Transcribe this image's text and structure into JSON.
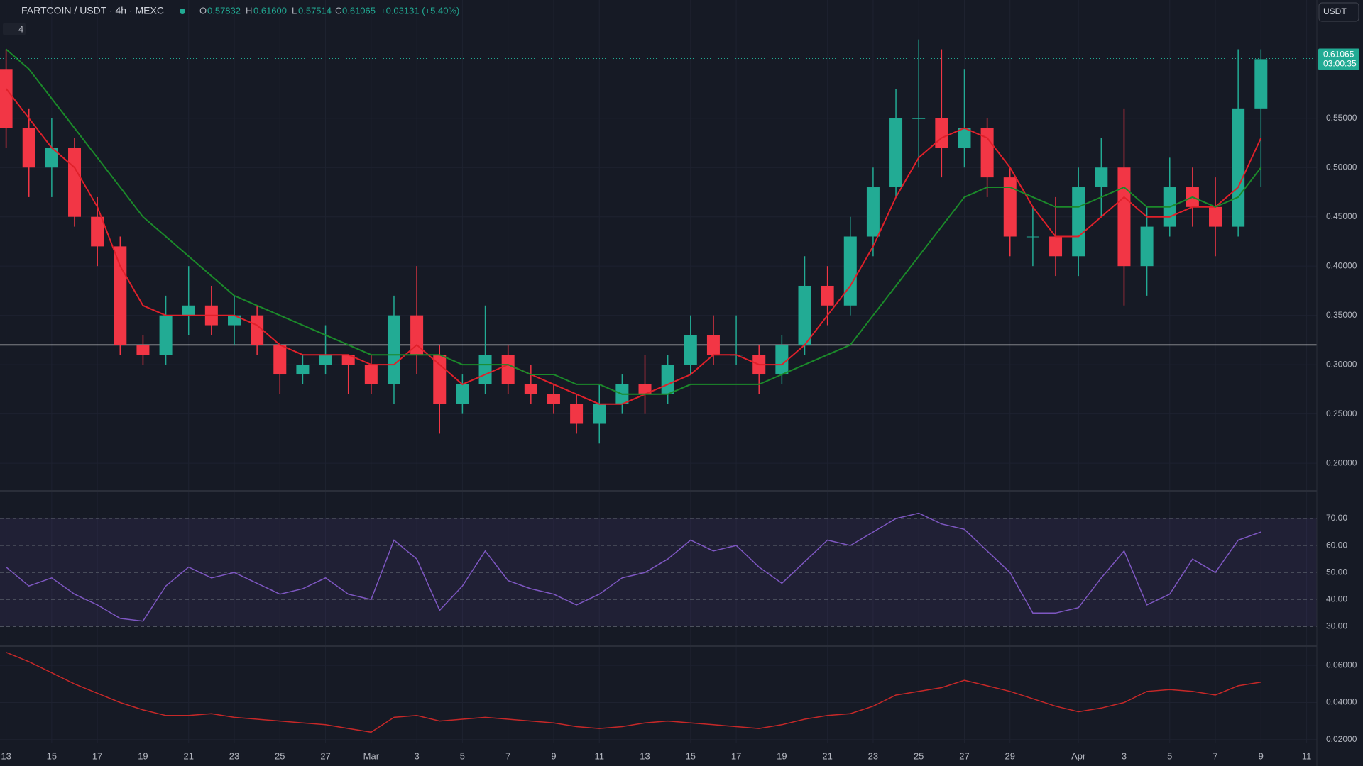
{
  "header": {
    "symbol": "FARTCOIN / USDT · 4h · MEXC",
    "o_label": "O",
    "o": "0.57832",
    "h_label": "H",
    "h": "0.61600",
    "l_label": "L",
    "l": "0.57514",
    "c_label": "C",
    "c": "0.61065",
    "change": "+0.03131 (+5.40%)",
    "currency": "USDT",
    "indicators": "4",
    "countdown": "03:00:35"
  },
  "chart_data": [
    {
      "type": "candlestick",
      "categories": [
        "13",
        null,
        "15",
        null,
        "17",
        null,
        "19",
        null,
        "21",
        null,
        "23",
        null,
        "25",
        null,
        "27",
        null,
        "Mar",
        null,
        "3",
        null,
        "5",
        null,
        "7",
        null,
        "9",
        null,
        "11",
        null,
        "13",
        null,
        "15",
        null,
        "17",
        null,
        "19",
        null,
        "21",
        null,
        "23",
        null,
        "25",
        null,
        "27",
        null,
        "29",
        null,
        null,
        "Apr",
        null,
        "3",
        null,
        "5",
        null,
        "7",
        null,
        "9",
        null,
        "11"
      ],
      "open": [
        0.6,
        0.54,
        0.5,
        0.52,
        0.45,
        0.42,
        0.32,
        0.31,
        0.35,
        0.36,
        0.34,
        0.35,
        0.32,
        0.29,
        0.3,
        0.31,
        0.3,
        0.28,
        0.35,
        0.31,
        0.26,
        0.28,
        0.31,
        0.28,
        0.27,
        0.26,
        0.24,
        0.26,
        0.28,
        0.27,
        0.3,
        0.33,
        0.31,
        0.31,
        0.29,
        0.32,
        0.38,
        0.36,
        0.43,
        0.48,
        0.55,
        0.55,
        0.52,
        0.54,
        0.49,
        0.43,
        0.43,
        0.41,
        0.48,
        0.5,
        0.4,
        0.44,
        0.48,
        0.46,
        0.44,
        0.56,
        null,
        null
      ],
      "high": [
        0.62,
        0.56,
        0.55,
        0.53,
        0.47,
        0.43,
        0.33,
        0.37,
        0.4,
        0.38,
        0.37,
        0.36,
        0.32,
        0.31,
        0.34,
        0.31,
        0.31,
        0.37,
        0.4,
        0.32,
        0.29,
        0.36,
        0.32,
        0.3,
        0.28,
        0.27,
        0.28,
        0.29,
        0.31,
        0.31,
        0.35,
        0.35,
        0.35,
        0.32,
        0.33,
        0.41,
        0.4,
        0.45,
        0.5,
        0.58,
        0.63,
        0.62,
        0.6,
        0.55,
        0.5,
        0.46,
        0.47,
        0.5,
        0.53,
        0.56,
        0.46,
        0.51,
        0.5,
        0.49,
        0.62,
        0.62,
        null,
        null
      ],
      "low": [
        0.52,
        0.47,
        0.47,
        0.44,
        0.4,
        0.31,
        0.3,
        0.3,
        0.33,
        0.33,
        0.32,
        0.31,
        0.27,
        0.28,
        0.29,
        0.27,
        0.27,
        0.26,
        0.29,
        0.23,
        0.25,
        0.27,
        0.27,
        0.26,
        0.25,
        0.23,
        0.22,
        0.25,
        0.25,
        0.26,
        0.29,
        0.3,
        0.3,
        0.27,
        0.28,
        0.31,
        0.34,
        0.35,
        0.41,
        0.47,
        0.5,
        0.49,
        0.5,
        0.47,
        0.41,
        0.4,
        0.39,
        0.39,
        0.45,
        0.36,
        0.37,
        0.43,
        0.44,
        0.41,
        0.43,
        0.48,
        null,
        null
      ],
      "close": [
        0.54,
        0.5,
        0.52,
        0.45,
        0.42,
        0.32,
        0.31,
        0.35,
        0.36,
        0.34,
        0.35,
        0.32,
        0.29,
        0.3,
        0.31,
        0.3,
        0.28,
        0.35,
        0.31,
        0.26,
        0.28,
        0.31,
        0.28,
        0.27,
        0.26,
        0.24,
        0.26,
        0.28,
        0.27,
        0.3,
        0.33,
        0.31,
        0.31,
        0.29,
        0.32,
        0.38,
        0.36,
        0.43,
        0.48,
        0.55,
        0.55,
        0.52,
        0.54,
        0.49,
        0.43,
        0.43,
        0.41,
        0.48,
        0.5,
        0.4,
        0.44,
        0.48,
        0.46,
        0.44,
        0.56,
        0.61,
        null,
        null
      ],
      "up_color": "#22ab94",
      "down_color": "#f23645",
      "lines": [
        {
          "color": "#e0202a",
          "values": [
            0.58,
            0.55,
            0.52,
            0.5,
            0.46,
            0.4,
            0.36,
            0.35,
            0.35,
            0.35,
            0.35,
            0.34,
            0.32,
            0.31,
            0.31,
            0.31,
            0.3,
            0.3,
            0.32,
            0.3,
            0.28,
            0.29,
            0.3,
            0.29,
            0.28,
            0.27,
            0.26,
            0.26,
            0.27,
            0.28,
            0.29,
            0.31,
            0.31,
            0.3,
            0.3,
            0.32,
            0.35,
            0.38,
            0.42,
            0.47,
            0.51,
            0.53,
            0.54,
            0.53,
            0.5,
            0.46,
            0.43,
            0.43,
            0.45,
            0.47,
            0.45,
            0.45,
            0.46,
            0.46,
            0.48,
            0.53,
            null,
            null
          ]
        },
        {
          "color": "#1b8a2a",
          "values": [
            0.62,
            0.6,
            0.57,
            0.54,
            0.51,
            0.48,
            0.45,
            0.43,
            0.41,
            0.39,
            0.37,
            0.36,
            0.35,
            0.34,
            0.33,
            0.32,
            0.31,
            0.31,
            0.31,
            0.31,
            0.3,
            0.3,
            0.3,
            0.29,
            0.29,
            0.28,
            0.28,
            0.27,
            0.27,
            0.27,
            0.28,
            0.28,
            0.28,
            0.28,
            0.29,
            0.3,
            0.31,
            0.32,
            0.35,
            0.38,
            0.41,
            0.44,
            0.47,
            0.48,
            0.48,
            0.47,
            0.46,
            0.46,
            0.47,
            0.48,
            0.46,
            0.46,
            0.47,
            0.46,
            0.47,
            0.5,
            null,
            null
          ]
        }
      ],
      "hline": 0.32,
      "ylim": [
        0.172,
        0.67
      ],
      "yticks": [
        {
          "value": 0.2,
          "label": "0.20000"
        },
        {
          "value": 0.25,
          "label": "0.25000"
        },
        {
          "value": 0.3,
          "label": "0.30000"
        },
        {
          "value": 0.35,
          "label": "0.35000"
        },
        {
          "value": 0.4,
          "label": "0.40000"
        },
        {
          "value": 0.45,
          "label": "0.45000"
        },
        {
          "value": 0.5,
          "label": "0.50000"
        },
        {
          "value": 0.55,
          "label": "0.55000"
        }
      ],
      "last_price": 0.61065,
      "grid": true
    },
    {
      "type": "line",
      "color": "#7e57c2",
      "values": [
        52,
        45,
        48,
        42,
        38,
        33,
        32,
        45,
        52,
        48,
        50,
        46,
        42,
        44,
        48,
        42,
        40,
        62,
        55,
        36,
        45,
        58,
        47,
        44,
        42,
        38,
        42,
        48,
        50,
        55,
        62,
        58,
        60,
        52,
        46,
        54,
        62,
        60,
        65,
        70,
        72,
        68,
        66,
        58,
        50,
        35,
        35,
        37,
        48,
        58,
        38,
        42,
        55,
        50,
        62,
        65,
        null,
        null
      ],
      "ylim": [
        23,
        80
      ],
      "yticks": [
        {
          "value": 30,
          "label": "30.00"
        },
        {
          "value": 40,
          "label": "40.00"
        },
        {
          "value": 50,
          "label": "50.00"
        },
        {
          "value": 60,
          "label": "60.00"
        },
        {
          "value": 70,
          "label": "70.00"
        }
      ],
      "bands": true
    },
    {
      "type": "line",
      "color": "#c62828",
      "values": [
        0.067,
        0.062,
        0.056,
        0.05,
        0.045,
        0.04,
        0.036,
        0.033,
        0.033,
        0.034,
        0.032,
        0.031,
        0.03,
        0.029,
        0.028,
        0.026,
        0.024,
        0.032,
        0.033,
        0.03,
        0.031,
        0.032,
        0.031,
        0.03,
        0.029,
        0.027,
        0.026,
        0.027,
        0.029,
        0.03,
        0.029,
        0.028,
        0.027,
        0.026,
        0.028,
        0.031,
        0.033,
        0.034,
        0.038,
        0.044,
        0.046,
        0.048,
        0.052,
        0.049,
        0.046,
        0.042,
        0.038,
        0.035,
        0.037,
        0.04,
        0.046,
        0.047,
        0.046,
        0.044,
        0.049,
        0.051,
        null,
        null
      ],
      "ylim": [
        0.018,
        0.07
      ],
      "yticks": [
        {
          "value": 0.02,
          "label": "0.02000"
        },
        {
          "value": 0.04,
          "label": "0.04000"
        },
        {
          "value": 0.06,
          "label": "0.06000"
        }
      ],
      "bands": false
    }
  ]
}
